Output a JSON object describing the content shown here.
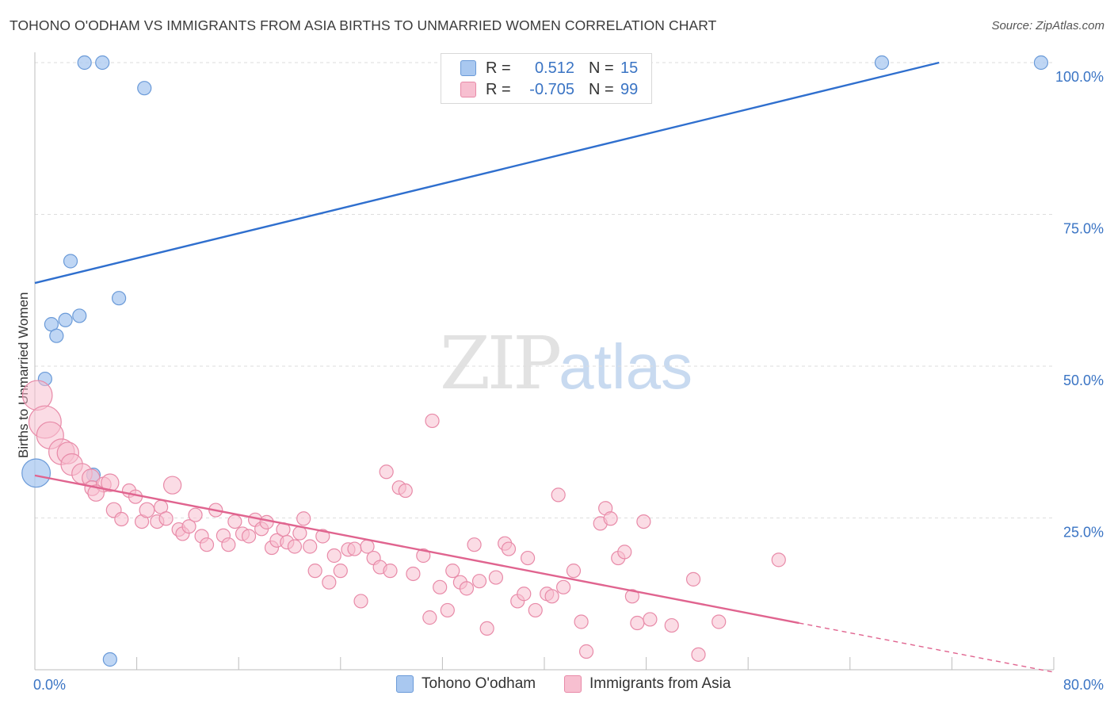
{
  "title": "TOHONO O'ODHAM VS IMMIGRANTS FROM ASIA BIRTHS TO UNMARRIED WOMEN CORRELATION CHART",
  "source": "Source: ZipAtlas.com",
  "watermark": {
    "zip": "ZIP",
    "atlas": "atlas"
  },
  "legend_top": {
    "rows": [
      {
        "key": "R =",
        "r": "0.512",
        "nkey": "N =",
        "n": "15",
        "color": "#a9c8f0",
        "border": "#6a9ad8"
      },
      {
        "key": "R =",
        "r": "-0.705",
        "nkey": "N =",
        "n": "99",
        "color": "#f7bfd0",
        "border": "#e88aa8"
      }
    ]
  },
  "legend_bottom": [
    {
      "label": "Tohono O'odham",
      "color": "#a9c8f0",
      "border": "#6a9ad8"
    },
    {
      "label": "Immigrants from Asia",
      "color": "#f7bfd0",
      "border": "#e88aa8"
    }
  ],
  "chart_data": {
    "type": "scatter",
    "title": "TOHONO O'ODHAM VS IMMIGRANTS FROM ASIA BIRTHS TO UNMARRIED WOMEN CORRELATION CHART",
    "xlabel": "",
    "ylabel": "Births to Unmarried Women",
    "xlim": [
      0,
      80
    ],
    "ylim": [
      0,
      100
    ],
    "x_tick_labels": [
      "0.0%",
      "80.0%"
    ],
    "y_tick_labels": [
      "100.0%",
      "75.0%",
      "50.0%",
      "25.0%"
    ],
    "y_tick_values": [
      100,
      75,
      50,
      25
    ],
    "grid": true,
    "legend_position": "top-center",
    "series": [
      {
        "name": "Tohono O'odham",
        "color": "#a9c8f0",
        "stroke": "#6a9ad8",
        "line_color": "#2f6fce",
        "R": 0.512,
        "N": 15,
        "trend": {
          "x": [
            0,
            71
          ],
          "y": [
            63.7,
            100
          ]
        },
        "points": [
          {
            "x": 3.9,
            "y": 100,
            "s": 1
          },
          {
            "x": 5.3,
            "y": 100,
            "s": 1
          },
          {
            "x": 8.6,
            "y": 95.8,
            "s": 1
          },
          {
            "x": 66.5,
            "y": 100,
            "s": 1
          },
          {
            "x": 79.0,
            "y": 100,
            "s": 1
          },
          {
            "x": 2.8,
            "y": 67.3,
            "s": 1
          },
          {
            "x": 6.6,
            "y": 61.2,
            "s": 1
          },
          {
            "x": 3.5,
            "y": 58.3,
            "s": 1
          },
          {
            "x": 2.4,
            "y": 57.6,
            "s": 1
          },
          {
            "x": 1.3,
            "y": 56.9,
            "s": 1
          },
          {
            "x": 1.7,
            "y": 55.0,
            "s": 1
          },
          {
            "x": 0.8,
            "y": 47.9,
            "s": 1
          },
          {
            "x": 0.1,
            "y": 32.4,
            "s": 2.1
          },
          {
            "x": 4.6,
            "y": 32.1,
            "s": 1
          },
          {
            "x": 5.9,
            "y": 1.7,
            "s": 1
          }
        ]
      },
      {
        "name": "Immigrants from Asia",
        "color": "#f7bfd0",
        "stroke": "#e88aa8",
        "line_color": "#e0648f",
        "R": -0.705,
        "N": 99,
        "trend": {
          "x": [
            0,
            60
          ],
          "y": [
            32.0,
            7.7
          ]
        },
        "trend_dashed": {
          "x": [
            60,
            80
          ],
          "y": [
            7.7,
            -0.4
          ]
        },
        "points": [
          {
            "x": 0.2,
            "y": 45.2,
            "s": 2.2
          },
          {
            "x": 0.8,
            "y": 40.8,
            "s": 2.4
          },
          {
            "x": 1.2,
            "y": 38.6,
            "s": 2.0
          },
          {
            "x": 2.1,
            "y": 35.9,
            "s": 1.9
          },
          {
            "x": 2.6,
            "y": 35.7,
            "s": 1.6
          },
          {
            "x": 2.9,
            "y": 33.8,
            "s": 1.6
          },
          {
            "x": 3.7,
            "y": 32.3,
            "s": 1.5
          },
          {
            "x": 4.4,
            "y": 31.6,
            "s": 1.3
          },
          {
            "x": 4.5,
            "y": 29.9,
            "s": 1.1
          },
          {
            "x": 5.4,
            "y": 30.5,
            "s": 1.1
          },
          {
            "x": 5.9,
            "y": 30.8,
            "s": 1.3
          },
          {
            "x": 4.8,
            "y": 29.1,
            "s": 1.2
          },
          {
            "x": 6.2,
            "y": 26.3,
            "s": 1.1
          },
          {
            "x": 6.8,
            "y": 24.8,
            "s": 1.0
          },
          {
            "x": 7.4,
            "y": 29.5,
            "s": 1.0
          },
          {
            "x": 7.9,
            "y": 28.5,
            "s": 1.0
          },
          {
            "x": 8.4,
            "y": 24.4,
            "s": 1.0
          },
          {
            "x": 8.8,
            "y": 26.3,
            "s": 1.1
          },
          {
            "x": 9.6,
            "y": 24.4,
            "s": 1.0
          },
          {
            "x": 9.9,
            "y": 26.8,
            "s": 1.0
          },
          {
            "x": 10.3,
            "y": 24.9,
            "s": 1.0
          },
          {
            "x": 10.8,
            "y": 30.4,
            "s": 1.3
          },
          {
            "x": 11.3,
            "y": 23.1,
            "s": 1.0
          },
          {
            "x": 11.6,
            "y": 22.4,
            "s": 1.0
          },
          {
            "x": 12.1,
            "y": 23.6,
            "s": 1.0
          },
          {
            "x": 12.6,
            "y": 25.5,
            "s": 1.0
          },
          {
            "x": 13.1,
            "y": 22.0,
            "s": 1.0
          },
          {
            "x": 13.5,
            "y": 20.6,
            "s": 1.0
          },
          {
            "x": 14.2,
            "y": 26.3,
            "s": 1.0
          },
          {
            "x": 14.8,
            "y": 22.1,
            "s": 1.0
          },
          {
            "x": 15.2,
            "y": 20.6,
            "s": 1.0
          },
          {
            "x": 15.7,
            "y": 24.4,
            "s": 1.0
          },
          {
            "x": 16.3,
            "y": 22.4,
            "s": 1.0
          },
          {
            "x": 16.8,
            "y": 22.0,
            "s": 1.0
          },
          {
            "x": 17.3,
            "y": 24.7,
            "s": 1.0
          },
          {
            "x": 17.8,
            "y": 23.2,
            "s": 1.0
          },
          {
            "x": 18.2,
            "y": 24.3,
            "s": 1.0
          },
          {
            "x": 18.6,
            "y": 20.1,
            "s": 1.0
          },
          {
            "x": 19.0,
            "y": 21.3,
            "s": 1.0
          },
          {
            "x": 19.5,
            "y": 23.1,
            "s": 1.0
          },
          {
            "x": 19.8,
            "y": 21.0,
            "s": 1.0
          },
          {
            "x": 20.4,
            "y": 20.3,
            "s": 1.0
          },
          {
            "x": 20.8,
            "y": 22.5,
            "s": 1.0
          },
          {
            "x": 21.1,
            "y": 24.9,
            "s": 1.0
          },
          {
            "x": 21.6,
            "y": 20.3,
            "s": 1.0
          },
          {
            "x": 22.0,
            "y": 16.3,
            "s": 1.0
          },
          {
            "x": 22.6,
            "y": 22.0,
            "s": 1.0
          },
          {
            "x": 23.1,
            "y": 14.4,
            "s": 1.0
          },
          {
            "x": 23.5,
            "y": 18.8,
            "s": 1.0
          },
          {
            "x": 24.0,
            "y": 16.3,
            "s": 1.0
          },
          {
            "x": 24.6,
            "y": 19.8,
            "s": 1.0
          },
          {
            "x": 25.1,
            "y": 19.9,
            "s": 1.0
          },
          {
            "x": 25.6,
            "y": 11.3,
            "s": 1.0
          },
          {
            "x": 26.1,
            "y": 20.3,
            "s": 1.0
          },
          {
            "x": 26.6,
            "y": 18.4,
            "s": 1.0
          },
          {
            "x": 27.1,
            "y": 16.9,
            "s": 1.0
          },
          {
            "x": 27.6,
            "y": 32.6,
            "s": 1.0
          },
          {
            "x": 27.9,
            "y": 16.3,
            "s": 1.0
          },
          {
            "x": 28.6,
            "y": 30.0,
            "s": 1.0
          },
          {
            "x": 29.1,
            "y": 29.5,
            "s": 1.0
          },
          {
            "x": 29.7,
            "y": 15.8,
            "s": 1.0
          },
          {
            "x": 30.5,
            "y": 18.8,
            "s": 1.0
          },
          {
            "x": 31.0,
            "y": 8.6,
            "s": 1.0
          },
          {
            "x": 31.2,
            "y": 41.0,
            "s": 1.0
          },
          {
            "x": 31.8,
            "y": 13.6,
            "s": 1.0
          },
          {
            "x": 32.4,
            "y": 9.8,
            "s": 1.0
          },
          {
            "x": 32.8,
            "y": 16.3,
            "s": 1.0
          },
          {
            "x": 33.4,
            "y": 14.4,
            "s": 1.0
          },
          {
            "x": 33.9,
            "y": 13.4,
            "s": 1.0
          },
          {
            "x": 34.5,
            "y": 20.6,
            "s": 1.0
          },
          {
            "x": 34.9,
            "y": 14.6,
            "s": 1.0
          },
          {
            "x": 35.5,
            "y": 6.8,
            "s": 1.0
          },
          {
            "x": 36.2,
            "y": 15.2,
            "s": 1.0
          },
          {
            "x": 36.9,
            "y": 20.8,
            "s": 1.0
          },
          {
            "x": 37.2,
            "y": 19.9,
            "s": 1.0
          },
          {
            "x": 37.9,
            "y": 11.3,
            "s": 1.0
          },
          {
            "x": 38.4,
            "y": 12.5,
            "s": 1.0
          },
          {
            "x": 38.7,
            "y": 18.4,
            "s": 1.0
          },
          {
            "x": 39.3,
            "y": 9.8,
            "s": 1.0
          },
          {
            "x": 40.2,
            "y": 12.5,
            "s": 1.0
          },
          {
            "x": 40.6,
            "y": 12.1,
            "s": 1.0
          },
          {
            "x": 41.1,
            "y": 28.8,
            "s": 1.0
          },
          {
            "x": 41.5,
            "y": 13.6,
            "s": 1.0
          },
          {
            "x": 42.3,
            "y": 16.3,
            "s": 1.0
          },
          {
            "x": 42.9,
            "y": 7.9,
            "s": 1.0
          },
          {
            "x": 43.3,
            "y": 3.0,
            "s": 1.0
          },
          {
            "x": 44.4,
            "y": 24.1,
            "s": 1.0
          },
          {
            "x": 44.8,
            "y": 26.6,
            "s": 1.0
          },
          {
            "x": 45.2,
            "y": 24.9,
            "s": 1.0
          },
          {
            "x": 45.8,
            "y": 18.4,
            "s": 1.0
          },
          {
            "x": 46.3,
            "y": 19.4,
            "s": 1.0
          },
          {
            "x": 46.9,
            "y": 12.1,
            "s": 1.0
          },
          {
            "x": 47.3,
            "y": 7.7,
            "s": 1.0
          },
          {
            "x": 47.8,
            "y": 24.4,
            "s": 1.0
          },
          {
            "x": 48.3,
            "y": 8.3,
            "s": 1.0
          },
          {
            "x": 50.0,
            "y": 7.3,
            "s": 1.0
          },
          {
            "x": 51.7,
            "y": 14.9,
            "s": 1.0
          },
          {
            "x": 52.1,
            "y": 2.5,
            "s": 1.0
          },
          {
            "x": 53.7,
            "y": 7.9,
            "s": 1.0
          },
          {
            "x": 58.4,
            "y": 18.1,
            "s": 1.0
          }
        ]
      }
    ]
  }
}
